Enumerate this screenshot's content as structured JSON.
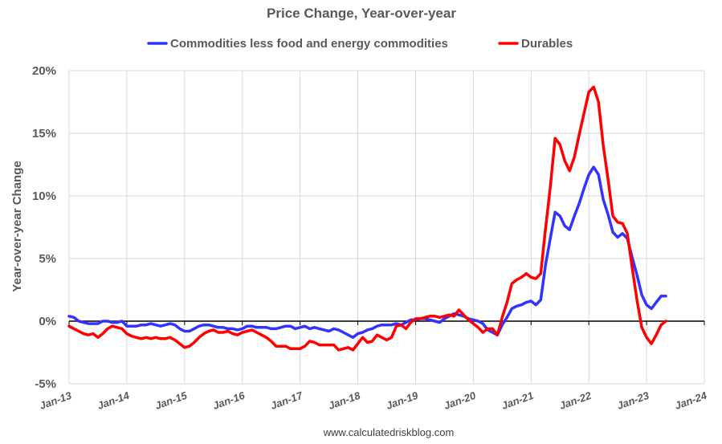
{
  "chart_data": {
    "type": "line",
    "title": "Price Change, Year-over-year",
    "ylabel": "Year-over-year Change",
    "ylim": [
      -5,
      20
    ],
    "yticks": [
      -5,
      0,
      5,
      10,
      15,
      20
    ],
    "ytick_labels": [
      "-5%",
      "0%",
      "5%",
      "10%",
      "15%",
      "20%"
    ],
    "xlim": [
      "2013-01",
      "2024-01"
    ],
    "xticks": [
      "2013-01",
      "2014-01",
      "2015-01",
      "2016-01",
      "2017-01",
      "2018-01",
      "2019-01",
      "2020-01",
      "2021-01",
      "2022-01",
      "2023-01",
      "2024-01"
    ],
    "xtick_labels": [
      "Jan-13",
      "Jan-14",
      "Jan-15",
      "Jan-16",
      "Jan-17",
      "Jan-18",
      "Jan-19",
      "Jan-20",
      "Jan-21",
      "Jan-22",
      "Jan-23",
      "Jan-24"
    ],
    "grid": true,
    "legend_position": "top",
    "series": [
      {
        "name": "Commodities less food and energy commodities",
        "color": "#3333ff",
        "points": [
          [
            "2013-01",
            0.4
          ],
          [
            "2013-02",
            0.3
          ],
          [
            "2013-03",
            0.0
          ],
          [
            "2013-04",
            -0.1
          ],
          [
            "2013-05",
            -0.2
          ],
          [
            "2013-06",
            -0.2
          ],
          [
            "2013-07",
            -0.2
          ],
          [
            "2013-08",
            0.0
          ],
          [
            "2013-09",
            0.0
          ],
          [
            "2013-10",
            -0.1
          ],
          [
            "2013-11",
            -0.1
          ],
          [
            "2013-12",
            0.0
          ],
          [
            "2014-01",
            -0.4
          ],
          [
            "2014-02",
            -0.4
          ],
          [
            "2014-03",
            -0.4
          ],
          [
            "2014-04",
            -0.3
          ],
          [
            "2014-05",
            -0.3
          ],
          [
            "2014-06",
            -0.2
          ],
          [
            "2014-07",
            -0.3
          ],
          [
            "2014-08",
            -0.4
          ],
          [
            "2014-09",
            -0.3
          ],
          [
            "2014-10",
            -0.2
          ],
          [
            "2014-11",
            -0.3
          ],
          [
            "2014-12",
            -0.6
          ],
          [
            "2015-01",
            -0.8
          ],
          [
            "2015-02",
            -0.8
          ],
          [
            "2015-03",
            -0.6
          ],
          [
            "2015-04",
            -0.4
          ],
          [
            "2015-05",
            -0.3
          ],
          [
            "2015-06",
            -0.3
          ],
          [
            "2015-07",
            -0.4
          ],
          [
            "2015-08",
            -0.5
          ],
          [
            "2015-09",
            -0.5
          ],
          [
            "2015-10",
            -0.6
          ],
          [
            "2015-11",
            -0.6
          ],
          [
            "2015-12",
            -0.7
          ],
          [
            "2016-01",
            -0.6
          ],
          [
            "2016-02",
            -0.4
          ],
          [
            "2016-03",
            -0.4
          ],
          [
            "2016-04",
            -0.5
          ],
          [
            "2016-05",
            -0.5
          ],
          [
            "2016-06",
            -0.5
          ],
          [
            "2016-07",
            -0.6
          ],
          [
            "2016-08",
            -0.6
          ],
          [
            "2016-09",
            -0.5
          ],
          [
            "2016-10",
            -0.4
          ],
          [
            "2016-11",
            -0.4
          ],
          [
            "2016-12",
            -0.6
          ],
          [
            "2017-01",
            -0.5
          ],
          [
            "2017-02",
            -0.4
          ],
          [
            "2017-03",
            -0.6
          ],
          [
            "2017-04",
            -0.5
          ],
          [
            "2017-05",
            -0.6
          ],
          [
            "2017-06",
            -0.7
          ],
          [
            "2017-07",
            -0.8
          ],
          [
            "2017-08",
            -0.6
          ],
          [
            "2017-09",
            -0.7
          ],
          [
            "2017-10",
            -0.9
          ],
          [
            "2017-11",
            -1.1
          ],
          [
            "2017-12",
            -1.3
          ],
          [
            "2018-01",
            -1.0
          ],
          [
            "2018-02",
            -0.9
          ],
          [
            "2018-03",
            -0.7
          ],
          [
            "2018-04",
            -0.6
          ],
          [
            "2018-05",
            -0.4
          ],
          [
            "2018-06",
            -0.3
          ],
          [
            "2018-07",
            -0.3
          ],
          [
            "2018-08",
            -0.3
          ],
          [
            "2018-09",
            -0.2
          ],
          [
            "2018-10",
            -0.3
          ],
          [
            "2018-11",
            -0.1
          ],
          [
            "2018-12",
            0.1
          ],
          [
            "2019-01",
            0.1
          ],
          [
            "2019-02",
            0.2
          ],
          [
            "2019-03",
            0.2
          ],
          [
            "2019-04",
            0.1
          ],
          [
            "2019-05",
            0.0
          ],
          [
            "2019-06",
            -0.1
          ],
          [
            "2019-07",
            0.2
          ],
          [
            "2019-08",
            0.4
          ],
          [
            "2019-09",
            0.6
          ],
          [
            "2019-10",
            0.5
          ],
          [
            "2019-11",
            0.4
          ],
          [
            "2019-12",
            0.2
          ],
          [
            "2020-01",
            0.1
          ],
          [
            "2020-02",
            0.0
          ],
          [
            "2020-03",
            -0.2
          ],
          [
            "2020-04",
            -0.7
          ],
          [
            "2020-05",
            -0.9
          ],
          [
            "2020-06",
            -1.1
          ],
          [
            "2020-07",
            -0.3
          ],
          [
            "2020-08",
            0.3
          ],
          [
            "2020-09",
            1.0
          ],
          [
            "2020-10",
            1.2
          ],
          [
            "2020-11",
            1.3
          ],
          [
            "2020-12",
            1.5
          ],
          [
            "2021-01",
            1.6
          ],
          [
            "2021-02",
            1.3
          ],
          [
            "2021-03",
            1.7
          ],
          [
            "2021-04",
            4.5
          ],
          [
            "2021-05",
            6.6
          ],
          [
            "2021-06",
            8.7
          ],
          [
            "2021-07",
            8.4
          ],
          [
            "2021-08",
            7.6
          ],
          [
            "2021-09",
            7.3
          ],
          [
            "2021-10",
            8.4
          ],
          [
            "2021-11",
            9.4
          ],
          [
            "2021-12",
            10.6
          ],
          [
            "2022-01",
            11.7
          ],
          [
            "2022-02",
            12.3
          ],
          [
            "2022-03",
            11.7
          ],
          [
            "2022-04",
            9.7
          ],
          [
            "2022-05",
            8.5
          ],
          [
            "2022-06",
            7.1
          ],
          [
            "2022-07",
            6.7
          ],
          [
            "2022-08",
            7.0
          ],
          [
            "2022-09",
            6.6
          ],
          [
            "2022-10",
            5.1
          ],
          [
            "2022-11",
            3.7
          ],
          [
            "2022-12",
            2.1
          ],
          [
            "2023-01",
            1.3
          ],
          [
            "2023-02",
            1.0
          ],
          [
            "2023-03",
            1.5
          ],
          [
            "2023-04",
            2.0
          ],
          [
            "2023-05",
            2.0
          ]
        ]
      },
      {
        "name": "Durables",
        "color": "#ff0000",
        "points": [
          [
            "2013-01",
            -0.4
          ],
          [
            "2013-02",
            -0.6
          ],
          [
            "2013-03",
            -0.8
          ],
          [
            "2013-04",
            -1.0
          ],
          [
            "2013-05",
            -1.1
          ],
          [
            "2013-06",
            -1.0
          ],
          [
            "2013-07",
            -1.3
          ],
          [
            "2013-08",
            -1.0
          ],
          [
            "2013-09",
            -0.6
          ],
          [
            "2013-10",
            -0.4
          ],
          [
            "2013-11",
            -0.5
          ],
          [
            "2013-12",
            -0.6
          ],
          [
            "2014-01",
            -1.0
          ],
          [
            "2014-02",
            -1.2
          ],
          [
            "2014-03",
            -1.3
          ],
          [
            "2014-04",
            -1.4
          ],
          [
            "2014-05",
            -1.3
          ],
          [
            "2014-06",
            -1.4
          ],
          [
            "2014-07",
            -1.3
          ],
          [
            "2014-08",
            -1.4
          ],
          [
            "2014-09",
            -1.4
          ],
          [
            "2014-10",
            -1.3
          ],
          [
            "2014-11",
            -1.5
          ],
          [
            "2014-12",
            -1.8
          ],
          [
            "2015-01",
            -2.1
          ],
          [
            "2015-02",
            -2.0
          ],
          [
            "2015-03",
            -1.7
          ],
          [
            "2015-04",
            -1.3
          ],
          [
            "2015-05",
            -1.0
          ],
          [
            "2015-06",
            -0.8
          ],
          [
            "2015-07",
            -0.7
          ],
          [
            "2015-08",
            -0.9
          ],
          [
            "2015-09",
            -0.9
          ],
          [
            "2015-10",
            -0.8
          ],
          [
            "2015-11",
            -1.0
          ],
          [
            "2015-12",
            -1.1
          ],
          [
            "2016-01",
            -0.9
          ],
          [
            "2016-02",
            -0.8
          ],
          [
            "2016-03",
            -0.7
          ],
          [
            "2016-04",
            -0.9
          ],
          [
            "2016-05",
            -1.1
          ],
          [
            "2016-06",
            -1.3
          ],
          [
            "2016-07",
            -1.6
          ],
          [
            "2016-08",
            -2.0
          ],
          [
            "2016-09",
            -2.0
          ],
          [
            "2016-10",
            -2.0
          ],
          [
            "2016-11",
            -2.2
          ],
          [
            "2016-12",
            -2.2
          ],
          [
            "2017-01",
            -2.2
          ],
          [
            "2017-02",
            -2.0
          ],
          [
            "2017-03",
            -1.6
          ],
          [
            "2017-04",
            -1.7
          ],
          [
            "2017-05",
            -1.9
          ],
          [
            "2017-06",
            -1.9
          ],
          [
            "2017-07",
            -1.9
          ],
          [
            "2017-08",
            -1.9
          ],
          [
            "2017-09",
            -2.3
          ],
          [
            "2017-10",
            -2.2
          ],
          [
            "2017-11",
            -2.1
          ],
          [
            "2017-12",
            -2.3
          ],
          [
            "2018-01",
            -1.8
          ],
          [
            "2018-02",
            -1.3
          ],
          [
            "2018-03",
            -1.7
          ],
          [
            "2018-04",
            -1.6
          ],
          [
            "2018-05",
            -1.1
          ],
          [
            "2018-06",
            -1.3
          ],
          [
            "2018-07",
            -1.5
          ],
          [
            "2018-08",
            -1.3
          ],
          [
            "2018-09",
            -0.4
          ],
          [
            "2018-10",
            -0.3
          ],
          [
            "2018-11",
            -0.6
          ],
          [
            "2018-12",
            -0.1
          ],
          [
            "2019-01",
            0.2
          ],
          [
            "2019-02",
            0.2
          ],
          [
            "2019-03",
            0.3
          ],
          [
            "2019-04",
            0.4
          ],
          [
            "2019-05",
            0.4
          ],
          [
            "2019-06",
            0.3
          ],
          [
            "2019-07",
            0.4
          ],
          [
            "2019-08",
            0.5
          ],
          [
            "2019-09",
            0.4
          ],
          [
            "2019-10",
            0.9
          ],
          [
            "2019-11",
            0.5
          ],
          [
            "2019-12",
            0.1
          ],
          [
            "2020-01",
            -0.2
          ],
          [
            "2020-02",
            -0.5
          ],
          [
            "2020-03",
            -0.9
          ],
          [
            "2020-04",
            -0.6
          ],
          [
            "2020-05",
            -0.6
          ],
          [
            "2020-06",
            -1.1
          ],
          [
            "2020-07",
            0.3
          ],
          [
            "2020-08",
            1.5
          ],
          [
            "2020-09",
            3.0
          ],
          [
            "2020-10",
            3.3
          ],
          [
            "2020-11",
            3.5
          ],
          [
            "2020-12",
            3.8
          ],
          [
            "2021-01",
            3.5
          ],
          [
            "2021-02",
            3.4
          ],
          [
            "2021-03",
            3.8
          ],
          [
            "2021-04",
            7.4
          ],
          [
            "2021-05",
            10.7
          ],
          [
            "2021-06",
            14.6
          ],
          [
            "2021-07",
            14.1
          ],
          [
            "2021-08",
            12.8
          ],
          [
            "2021-09",
            12.0
          ],
          [
            "2021-10",
            13.1
          ],
          [
            "2021-11",
            14.9
          ],
          [
            "2021-12",
            16.6
          ],
          [
            "2022-01",
            18.3
          ],
          [
            "2022-02",
            18.7
          ],
          [
            "2022-03",
            17.5
          ],
          [
            "2022-04",
            14.0
          ],
          [
            "2022-05",
            11.3
          ],
          [
            "2022-06",
            8.4
          ],
          [
            "2022-07",
            7.9
          ],
          [
            "2022-08",
            7.8
          ],
          [
            "2022-09",
            7.0
          ],
          [
            "2022-10",
            4.3
          ],
          [
            "2022-11",
            1.7
          ],
          [
            "2022-12",
            -0.5
          ],
          [
            "2023-01",
            -1.3
          ],
          [
            "2023-02",
            -1.8
          ],
          [
            "2023-03",
            -1.1
          ],
          [
            "2023-04",
            -0.3
          ],
          [
            "2023-05",
            0.0
          ]
        ]
      }
    ]
  },
  "footer": "www.calculatedriskblog.com"
}
